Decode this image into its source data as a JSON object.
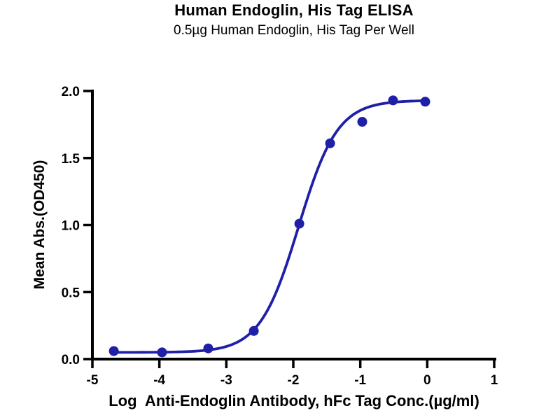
{
  "page": {
    "background_color": "#ffffff",
    "text_color": "#000000",
    "accent_color": "#1f1fa8"
  },
  "chart_data": {
    "type": "scatter",
    "title": "Human Endoglin, His Tag ELISA",
    "subtitle": "0.5µg Human Endoglin, His Tag Per Well",
    "xlabel": "Log  Anti-Endoglin Antibody, hFc Tag Conc.(µg/ml)",
    "ylabel": "Mean Abs.(OD450)",
    "xlim": [
      -5,
      1
    ],
    "ylim": [
      0,
      2
    ],
    "grid": false,
    "legend_position": "none",
    "axis_color": "#000000",
    "x_ticks": {
      "values": [
        -5,
        -4,
        -3,
        -2,
        -1,
        0,
        1
      ],
      "labels": [
        "-5",
        "-4",
        "-3",
        "-2",
        "-1",
        "0",
        "1"
      ]
    },
    "y_ticks": {
      "values": [
        0,
        0.5,
        1,
        1.5,
        2
      ],
      "labels": [
        "0.0",
        "0.5",
        "1.0",
        "1.5",
        "2.0"
      ]
    },
    "series": [
      {
        "name": "Anti-Endoglin Antibody, hFc Tag",
        "color": "#1f1fa8",
        "marker": "circle",
        "marker_radius": 7,
        "line_width": 3.8,
        "points": [
          {
            "x": -4.68,
            "y": 0.06
          },
          {
            "x": -3.96,
            "y": 0.05
          },
          {
            "x": -3.27,
            "y": 0.08
          },
          {
            "x": -2.59,
            "y": 0.21
          },
          {
            "x": -1.91,
            "y": 1.01
          },
          {
            "x": -1.45,
            "y": 1.61
          },
          {
            "x": -0.97,
            "y": 1.77
          },
          {
            "x": -0.51,
            "y": 1.93
          },
          {
            "x": -0.03,
            "y": 1.92
          }
        ],
        "fit_curve": {
          "model": "4PL-logistic",
          "bottom": 0.05,
          "top": 1.93,
          "log_ec50": -1.92,
          "hill_slope": 1.5,
          "x_start": -4.68,
          "x_end": -0.03
        }
      }
    ]
  }
}
